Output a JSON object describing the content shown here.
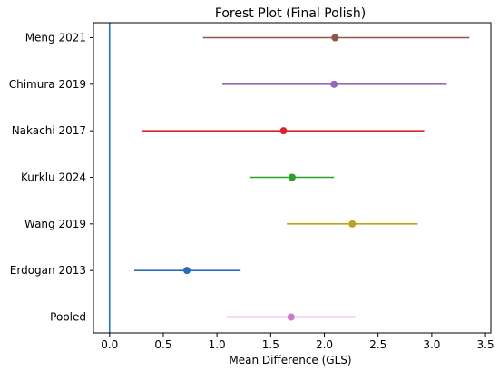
{
  "chart_data": {
    "type": "scatter",
    "title": "Forest Plot (Final Polish)",
    "xlabel": "Mean Difference (GLS)",
    "ylabel": "",
    "xlim": [
      -0.15,
      3.55
    ],
    "xticks": [
      0.0,
      0.5,
      1.0,
      1.5,
      2.0,
      2.5,
      3.0,
      3.5
    ],
    "xtick_labels": [
      "0.0",
      "0.5",
      "1.0",
      "1.5",
      "2.0",
      "2.5",
      "3.0",
      "3.5"
    ],
    "reference_line": {
      "x": 0,
      "color": "#1f77b4"
    },
    "grid": false,
    "legend": "none",
    "studies": [
      {
        "name": "Meng 2021",
        "estimate": 2.1,
        "ci_low": 0.87,
        "ci_high": 3.35,
        "color": "#8c564b"
      },
      {
        "name": "Chimura 2019",
        "estimate": 2.09,
        "ci_low": 1.05,
        "ci_high": 3.14,
        "color": "#9467bd"
      },
      {
        "name": "Nakachi 2017",
        "estimate": 1.62,
        "ci_low": 0.3,
        "ci_high": 2.93,
        "color": "#d62728"
      },
      {
        "name": "Kurklu 2024",
        "estimate": 1.7,
        "ci_low": 1.31,
        "ci_high": 2.09,
        "color": "#2ca02c"
      },
      {
        "name": "Wang 2019",
        "estimate": 2.26,
        "ci_low": 1.65,
        "ci_high": 2.87,
        "color": "#bfa21c"
      },
      {
        "name": "Erdogan 2013",
        "estimate": 0.72,
        "ci_low": 0.23,
        "ci_high": 1.22,
        "color": "#2a6db5"
      },
      {
        "name": "Pooled",
        "estimate": 1.69,
        "ci_low": 1.09,
        "ci_high": 2.29,
        "color": "#cc78cc"
      }
    ]
  }
}
